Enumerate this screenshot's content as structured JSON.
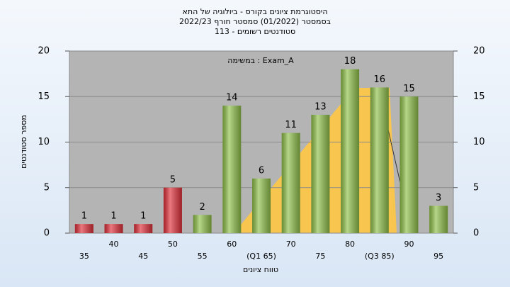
{
  "chart_data": {
    "type": "bar",
    "title": "היסטוגרמת ציונים בקורס - ביולוגיה של התא",
    "subtitle": "בסמסטר (01/2022) סמסטר חורף 2022/23",
    "subtitle2": "סטודנטים רשומים - 113",
    "annotation": "במשימה : Exam_A",
    "x_label": "טווח ציונים",
    "y_label": "מספר סטודנטים",
    "categories": [
      "35",
      "40",
      "45",
      "50",
      "55",
      "60",
      "(Q1 65)",
      "70",
      "75",
      "80",
      "(Q3 85)",
      "90",
      "95"
    ],
    "values": [
      1,
      1,
      1,
      5,
      2,
      14,
      6,
      11,
      13,
      18,
      16,
      15,
      3
    ],
    "colors": [
      "#e0303a",
      "#e0303a",
      "#e0303a",
      "#e0303a",
      "#8fc04a",
      "#8fc04a",
      "#8fc04a",
      "#8fc04a",
      "#8fc04a",
      "#8fc04a",
      "#8fc04a",
      "#8fc04a",
      "#8fc04a"
    ],
    "ylim": [
      0,
      20
    ],
    "yticks": [
      0,
      5,
      10,
      15,
      20
    ],
    "grid": true
  }
}
